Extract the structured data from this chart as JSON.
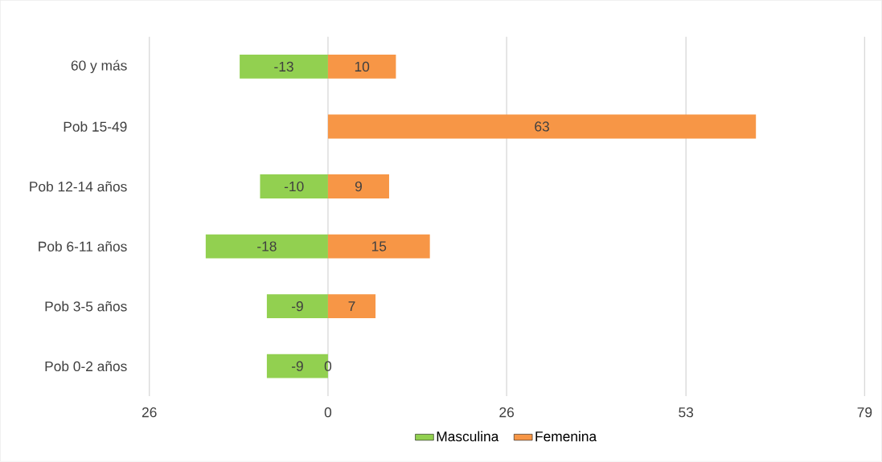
{
  "chart_data": {
    "type": "bar",
    "orientation": "horizontal",
    "categories": [
      "60 y más",
      "Pob 15-49",
      "Pob 12-14 años",
      "Pob 6-11 años",
      "Pob 3-5 años",
      "Pob 0-2 años"
    ],
    "series": [
      {
        "name": "Masculina",
        "color": "#92d050",
        "values": [
          -13,
          null,
          -10,
          -18,
          -9,
          -9
        ]
      },
      {
        "name": "Femenina",
        "color": "#f79646",
        "values": [
          10,
          63,
          9,
          15,
          7,
          0
        ]
      }
    ],
    "xlim": [
      -26.3,
      79
    ],
    "xticks": [
      {
        "value": -26.3,
        "label": "26"
      },
      0,
      {
        "value": 26.3,
        "label": "26"
      },
      {
        "value": 52.7,
        "label": "53"
      },
      79
    ],
    "stacked": true,
    "grid": "x",
    "legend": "bottom",
    "data_labels": true
  }
}
